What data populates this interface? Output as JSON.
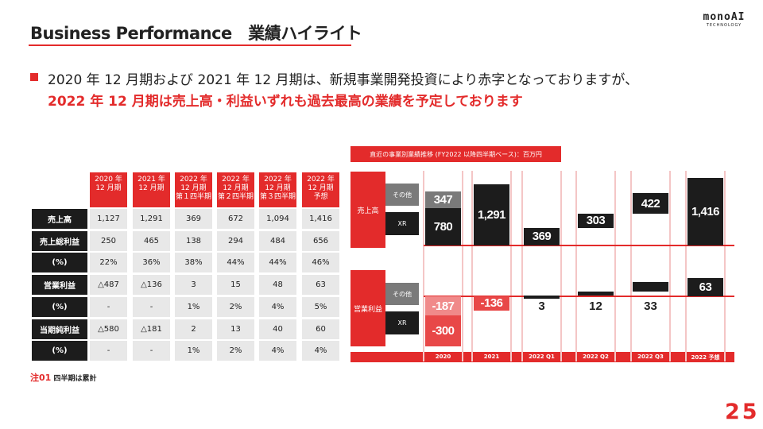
{
  "header": {
    "title": "Business Performance　業績ハイライト",
    "logo_main": "monoAI",
    "logo_sub": "TECHNOLOGY"
  },
  "lead": {
    "line1": "2020 年 12 月期および 2021 年 12 月期は、新規事業開発投資により赤字となっておりますが、",
    "line2": "2022 年 12 月期は売上高・利益いずれも過去最高の業績を予定しております"
  },
  "table": {
    "columns": [
      [
        "2020 年",
        "12 月期",
        ""
      ],
      [
        "2021 年",
        "12 月期",
        ""
      ],
      [
        "2022 年",
        "12 月期",
        "第１四半期"
      ],
      [
        "2022 年",
        "12 月期",
        "第２四半期"
      ],
      [
        "2022 年",
        "12 月期",
        "第３四半期"
      ],
      [
        "2022 年",
        "12 月期",
        "予想"
      ]
    ],
    "rows": [
      {
        "label": "売上高",
        "values": [
          "1,127",
          "1,291",
          "369",
          "672",
          "1,094",
          "1,416"
        ]
      },
      {
        "label": "売上総利益",
        "values": [
          "250",
          "465",
          "138",
          "294",
          "484",
          "656"
        ]
      },
      {
        "label": "(%)",
        "values": [
          "22%",
          "36%",
          "38%",
          "44%",
          "44%",
          "46%"
        ]
      },
      {
        "label": "営業利益",
        "values": [
          "△487",
          "△136",
          "3",
          "15",
          "48",
          "63"
        ]
      },
      {
        "label": "(%)",
        "values": [
          "-",
          "-",
          "1%",
          "2%",
          "4%",
          "5%"
        ]
      },
      {
        "label": "当期純利益",
        "values": [
          "△580",
          "△181",
          "2",
          "13",
          "40",
          "60"
        ]
      },
      {
        "label": "(%)",
        "values": [
          "-",
          "-",
          "1%",
          "2%",
          "4%",
          "4%"
        ]
      }
    ],
    "note_num": "注01",
    "note_text": "四半期は累計"
  },
  "page_number": "25",
  "chart_data": {
    "type": "bar",
    "title": "直近の事業別業績推移 (FY2022 以降四半期ベース)：百万円",
    "categories": [
      "2020",
      "2021",
      "2022 Q1",
      "2022 Q2",
      "2022 Q3",
      "2022 予想"
    ],
    "segments": {
      "sales": "売上高",
      "op": "営業利益"
    },
    "legend": {
      "other": "その他",
      "xr": "XR"
    },
    "sales": [
      {
        "base": 0,
        "parts": [
          {
            "series": "xr",
            "value": 780,
            "label": "780"
          },
          {
            "series": "other",
            "value": 347,
            "label": "347"
          }
        ]
      },
      {
        "base": 0,
        "parts": [
          {
            "series": "total",
            "value": 1291,
            "label": "1,291"
          }
        ]
      },
      {
        "base": 0,
        "parts": [
          {
            "series": "total",
            "value": 369,
            "label": "369"
          }
        ]
      },
      {
        "base": 369,
        "parts": [
          {
            "series": "total",
            "value": 303,
            "label": "303"
          }
        ]
      },
      {
        "base": 672,
        "parts": [
          {
            "series": "total",
            "value": 422,
            "label": "422"
          }
        ]
      },
      {
        "base": 0,
        "parts": [
          {
            "series": "total",
            "value": 1416,
            "label": "1,416"
          }
        ]
      }
    ],
    "op": [
      {
        "base": 0,
        "parts": [
          {
            "series": "other",
            "value": -187,
            "label": "-187"
          },
          {
            "series": "xr",
            "value": -300,
            "label": "-300"
          }
        ]
      },
      {
        "base": 0,
        "parts": [
          {
            "series": "total",
            "value": -136,
            "label": "-136"
          }
        ]
      },
      {
        "base": 0,
        "parts": [
          {
            "series": "total",
            "value": 3,
            "label": "3"
          }
        ],
        "label_below": true
      },
      {
        "base": 3,
        "parts": [
          {
            "series": "total",
            "value": 12,
            "label": "12"
          }
        ],
        "label_below": true
      },
      {
        "base": 15,
        "parts": [
          {
            "series": "total",
            "value": 33,
            "label": "33"
          }
        ],
        "label_below": true
      },
      {
        "base": 0,
        "parts": [
          {
            "series": "total",
            "value": 63,
            "label": "63"
          }
        ]
      }
    ],
    "colors": {
      "xr": "#1c1c1c",
      "other": "#7a7a7a",
      "total": "#1c1c1c",
      "neg_other": "#f08a8a",
      "neg_xr": "#e84848",
      "neg_total": "#e84848",
      "accent": "#e32b2b"
    }
  }
}
